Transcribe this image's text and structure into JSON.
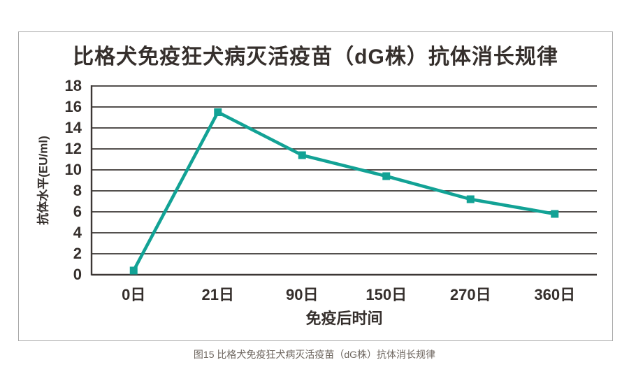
{
  "figure": {
    "caption": "图15 比格犬免疫狂犬病灭活疫苗（dG株）抗体消长规律"
  },
  "chart_data": {
    "type": "line",
    "title": "比格犬免疫狂犬病灭活疫苗（dG株）抗体消长规律",
    "xlabel": "免疫后时间",
    "ylabel": "抗体水平(EU/ml)",
    "categories": [
      "0日",
      "21日",
      "90日",
      "150日",
      "270日",
      "360日"
    ],
    "series": [
      {
        "name": "抗体水平",
        "values": [
          0.4,
          15.5,
          11.4,
          9.4,
          7.2,
          5.8
        ]
      }
    ],
    "ylim": [
      0,
      18
    ],
    "ytick_step": 2,
    "grid": "horizontal-only",
    "legend_position": "none",
    "marker": "square",
    "colors": {
      "line": "#12a295",
      "grid": "#3c3735",
      "text": "#352f2c",
      "caption": "#6e665f",
      "border": "#a8a8a8",
      "background": "#ffffff"
    }
  }
}
